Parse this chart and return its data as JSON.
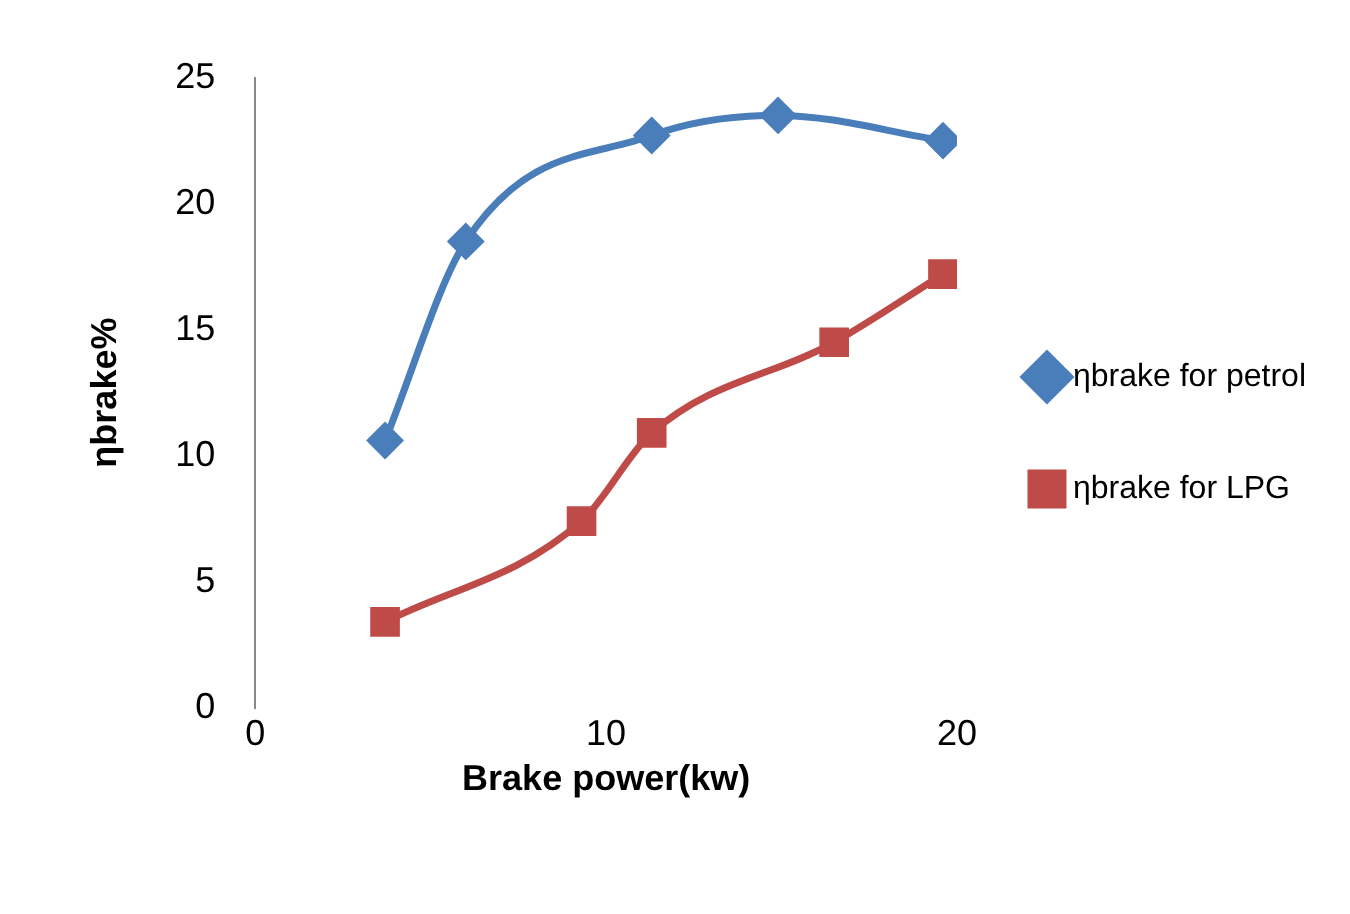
{
  "chart_data": {
    "type": "line",
    "xlabel": "Brake power(kw)",
    "ylabel": "ηbrake%",
    "xlim": [
      0,
      20
    ],
    "xticks": [
      0,
      10,
      20
    ],
    "ylim": [
      0,
      25
    ],
    "yticks": [
      0,
      5,
      10,
      15,
      20,
      25
    ],
    "grid": false,
    "legend": "right",
    "series": [
      {
        "name": "ηbrake for petrol",
        "color": "#4a7ebb",
        "marker": "diamond",
        "x": [
          3.7,
          6.0,
          11.3,
          14.9,
          19.6
        ],
        "values": [
          10.6,
          18.5,
          22.7,
          23.5,
          22.5
        ]
      },
      {
        "name": "ηbrake for LPG",
        "color": "#be4b48",
        "marker": "square",
        "x": [
          3.7,
          9.3,
          11.3,
          16.5,
          19.6
        ],
        "values": [
          3.4,
          7.4,
          10.9,
          14.5,
          17.2
        ]
      }
    ]
  }
}
